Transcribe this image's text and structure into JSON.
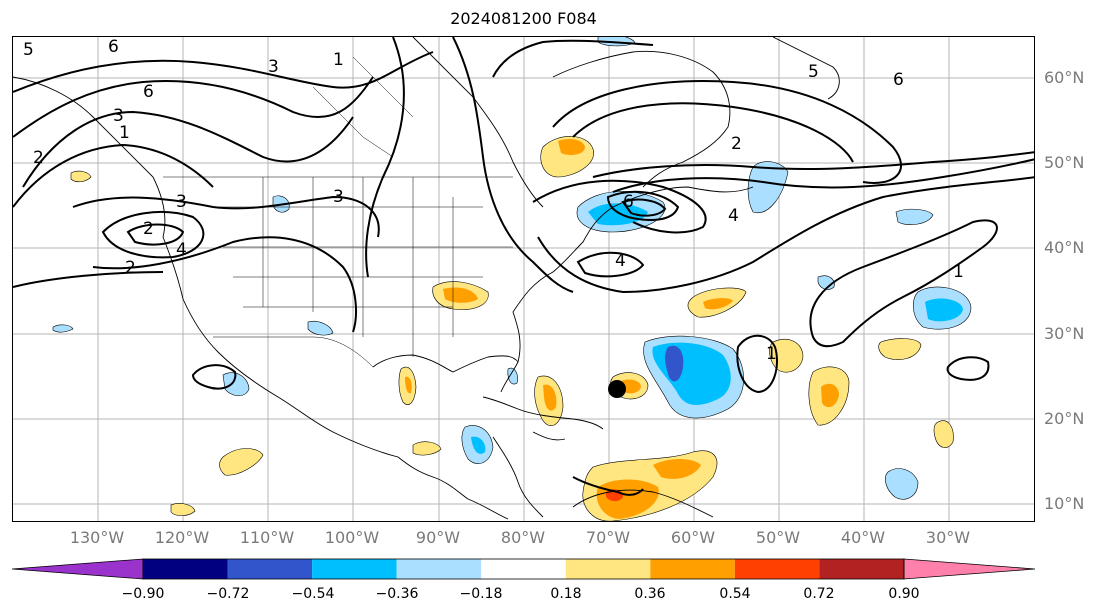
{
  "title": "2024081200 F084",
  "lat_labels": [
    "60°N",
    "50°N",
    "40°N",
    "30°N",
    "20°N",
    "10°N"
  ],
  "lon_labels": [
    "130°W",
    "120°W",
    "110°W",
    "100°W",
    "90°W",
    "80°W",
    "70°W",
    "60°W",
    "50°W",
    "40°W",
    "30°W"
  ],
  "colorbar": {
    "ticks": [
      "−0.90",
      "−0.72",
      "−0.54",
      "−0.36",
      "−0.18",
      "0.18",
      "0.36",
      "0.54",
      "0.72",
      "0.90"
    ],
    "colors": [
      "#9933cc",
      "#000080",
      "#3355cc",
      "#00bfff",
      "#aadfff",
      "#ffffff",
      "#ffe680",
      "#ffa000",
      "#ff4000",
      "#b22222",
      "#ff80aa"
    ]
  },
  "contour_labels": [
    "6",
    "5",
    "3",
    "1",
    "2",
    "3",
    "2",
    "4",
    "2",
    "3",
    "6",
    "3",
    "1",
    "2",
    "6",
    "4",
    "5",
    "6",
    "4",
    "1",
    "1"
  ],
  "colors": {
    "grid": "#b5b5b5",
    "contour": "#000000",
    "coast": "#000000"
  }
}
